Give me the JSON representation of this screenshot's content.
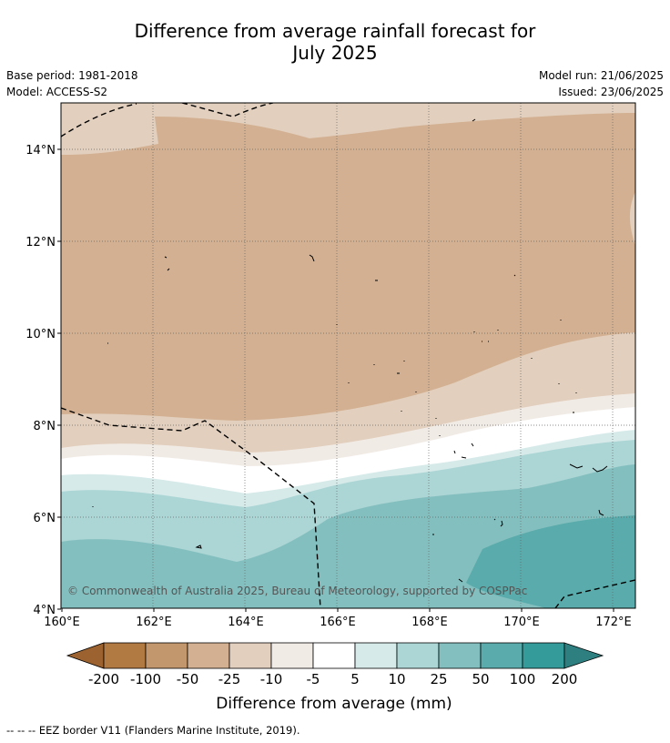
{
  "title_line1": "Difference from average rainfall forecast for",
  "title_line2": "July 2025",
  "meta": {
    "base_period": "Base period: 1981-2018",
    "model": "Model: ACCESS-S2",
    "model_run": "Model run: 21/06/2025",
    "issued": "Issued: 23/06/2025"
  },
  "map": {
    "lon_ticks": [
      "160°E",
      "162°E",
      "164°E",
      "166°E",
      "168°E",
      "170°E",
      "172°E"
    ],
    "lat_ticks": [
      "14°N",
      "12°N",
      "10°N",
      "8°N",
      "6°N",
      "4°N"
    ],
    "lon_range": [
      160,
      172.5
    ],
    "lat_range": [
      4,
      15
    ],
    "copyright": "© Commonwealth of Australia 2025, Bureau of Meteorology, supported by COSPPac"
  },
  "colorbar": {
    "label": "Difference from average (mm)",
    "tick_labels": [
      "-200",
      "-100",
      "-50",
      "-25",
      "-10",
      "-5",
      "5",
      "10",
      "25",
      "50",
      "100",
      "200"
    ],
    "colors": [
      "#9c6230",
      "#b27a43",
      "#c3976d",
      "#d2b091",
      "#e2cfbd",
      "#f1ebe6",
      "#ffffff",
      "#d5eae9",
      "#acd5d5",
      "#84bfbf",
      "#5aabab",
      "#359a9a",
      "#2e8080"
    ]
  },
  "footnote": "--  --  -- EEZ border V11 (Flanders Marine Institute, 2019)."
}
